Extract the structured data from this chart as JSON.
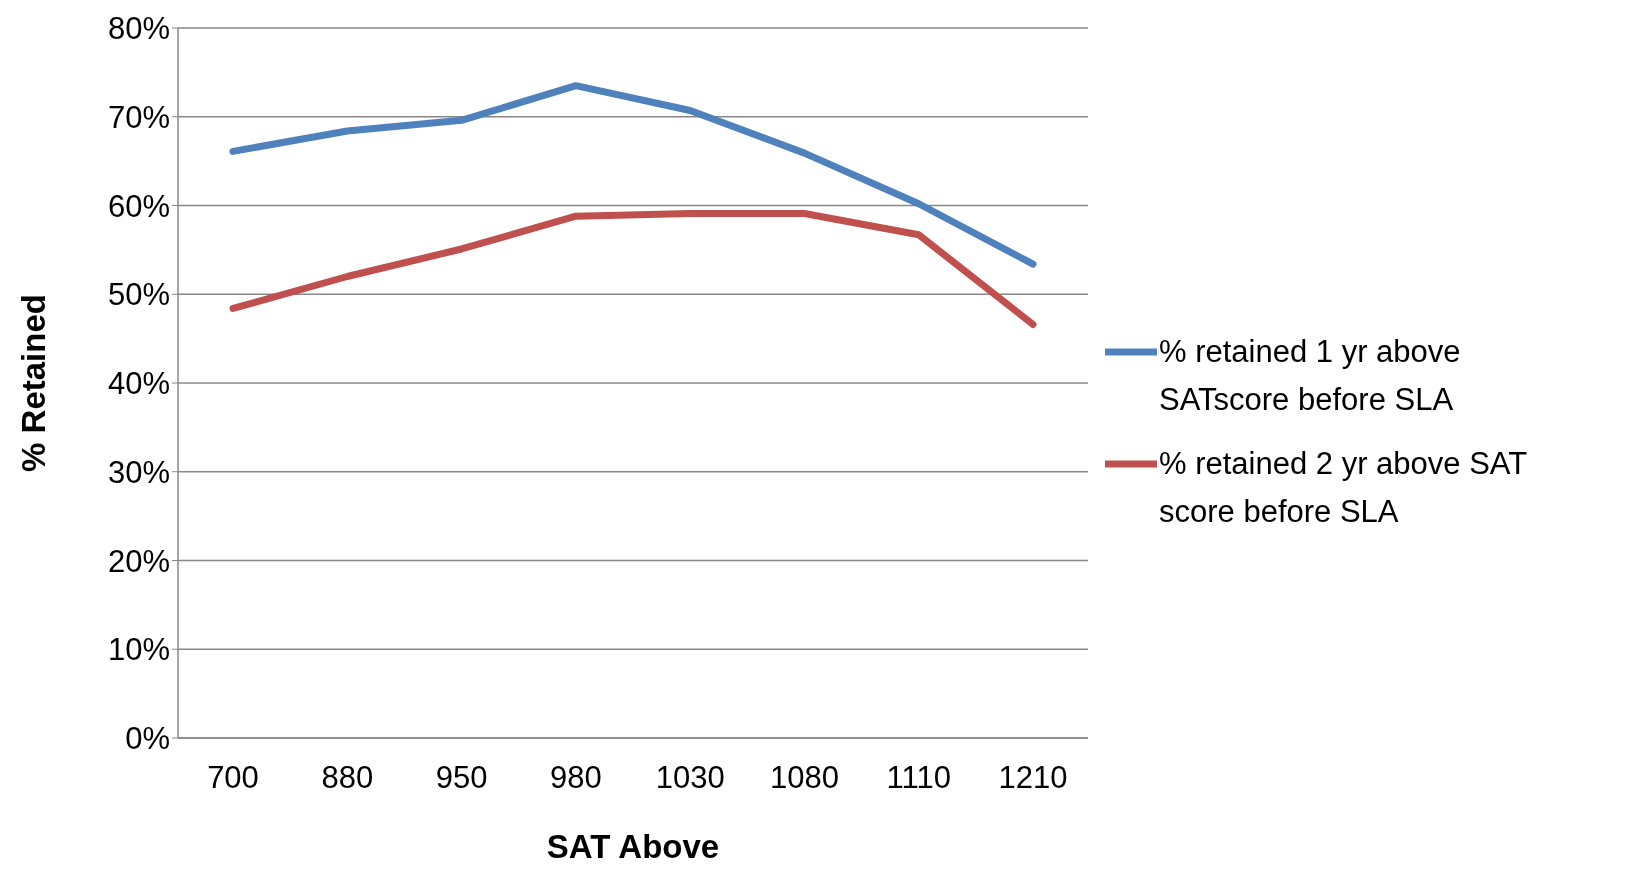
{
  "chart_data": {
    "type": "line",
    "xlabel": "SAT Above",
    "ylabel": "% Retained",
    "categories": [
      "700",
      "880",
      "950",
      "980",
      "1030",
      "1080",
      "1110",
      "1210"
    ],
    "series": [
      {
        "name": "% retained 1 yr above SATscore before SLA",
        "color": "#4f81bd",
        "values": [
          66.1,
          68.4,
          69.6,
          73.5,
          70.7,
          65.9,
          60.2,
          53.4
        ]
      },
      {
        "name": "% retained 2 yr above SAT score before SLA",
        "color": "#c0504d",
        "values": [
          48.4,
          52.0,
          55.1,
          58.8,
          59.1,
          59.1,
          56.7,
          46.6
        ]
      }
    ],
    "ylim": [
      0,
      80
    ],
    "yticks": [
      {
        "value": 0,
        "label": "0%"
      },
      {
        "value": 10,
        "label": "10%"
      },
      {
        "value": 20,
        "label": "20%"
      },
      {
        "value": 30,
        "label": "30%"
      },
      {
        "value": 40,
        "label": "40%"
      },
      {
        "value": 50,
        "label": "50%"
      },
      {
        "value": 60,
        "label": "60%"
      },
      {
        "value": 70,
        "label": "70%"
      },
      {
        "value": 80,
        "label": "80%"
      }
    ],
    "grid": "y",
    "legend": "right",
    "marker": "none",
    "line_style": "solid"
  }
}
